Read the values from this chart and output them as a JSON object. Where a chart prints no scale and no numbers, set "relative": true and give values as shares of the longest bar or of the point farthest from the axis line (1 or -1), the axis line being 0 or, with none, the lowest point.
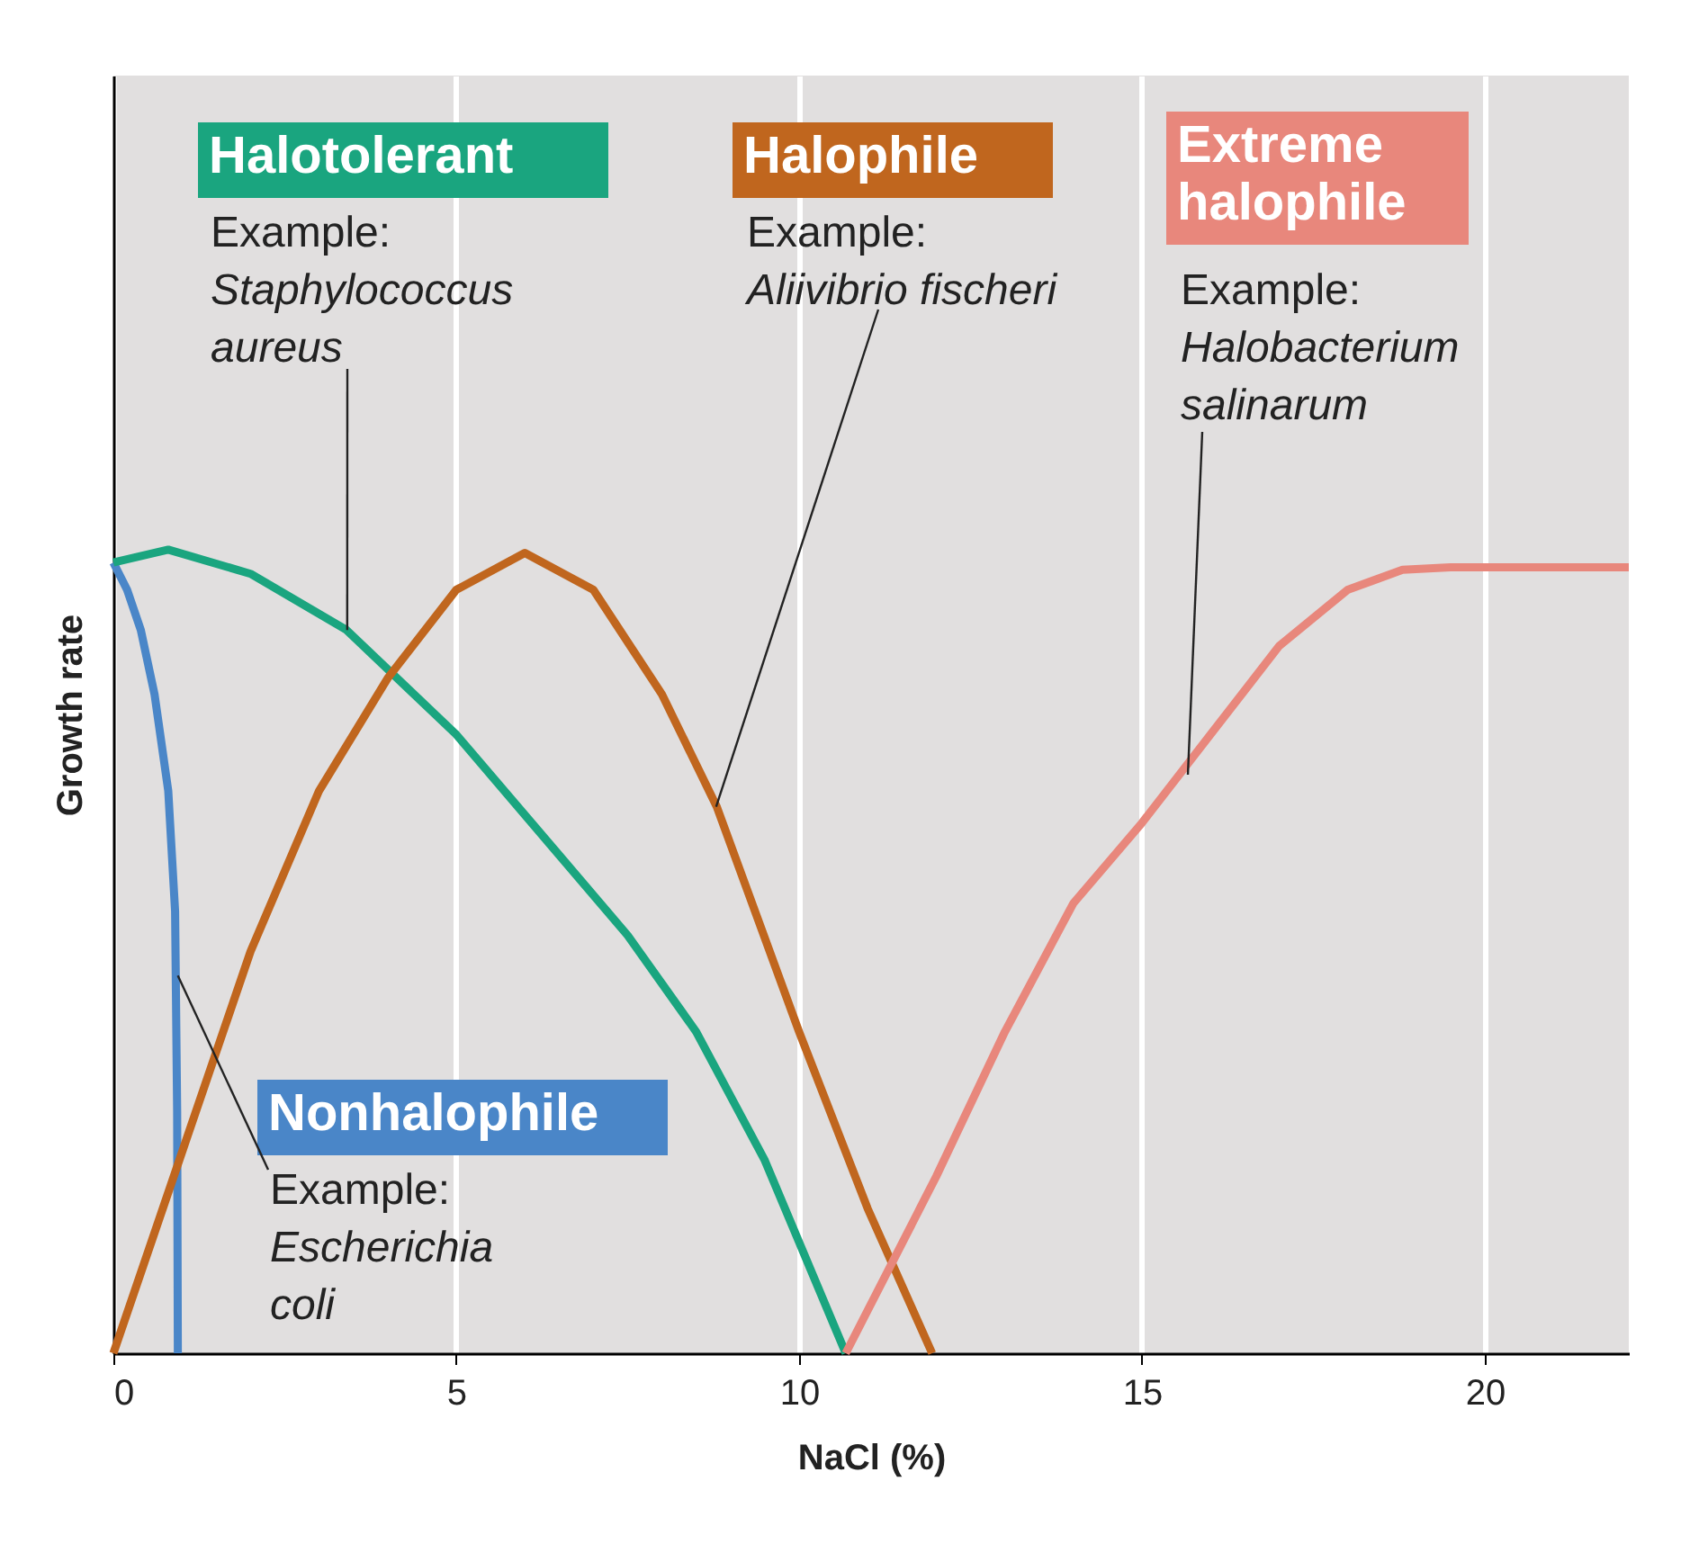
{
  "chart_data": {
    "type": "line",
    "xlabel": "NaCl (%)",
    "ylabel": "Growth rate",
    "relative": true,
    "xlim": [
      0,
      22.1
    ],
    "xticks": [
      0,
      5,
      10,
      15,
      20
    ],
    "grid": "x",
    "marker": "none",
    "line_style": "solid",
    "series": [
      {
        "name": "Nonhalophile",
        "color": "#4a86c8",
        "x": [
          0,
          0.2,
          0.4,
          0.6,
          0.8,
          0.9,
          0.93,
          0.94
        ],
        "values": [
          0.984,
          0.95,
          0.9,
          0.82,
          0.7,
          0.55,
          0.3,
          0
        ]
      },
      {
        "name": "Halotolerant",
        "color": "#1aa57f",
        "x": [
          0,
          0.8,
          2,
          3.4,
          5,
          6.5,
          7.5,
          8.5,
          9.5,
          10.68
        ],
        "values": [
          0.984,
          1,
          0.97,
          0.9,
          0.77,
          0.62,
          0.52,
          0.4,
          0.24,
          0
        ]
      },
      {
        "name": "Halophile",
        "color": "#c0661e",
        "x": [
          0,
          1,
          2,
          3,
          4,
          5,
          6,
          7,
          8,
          8.8,
          10,
          11,
          11.94
        ],
        "values": [
          0,
          0.25,
          0.5,
          0.7,
          0.84,
          0.95,
          0.996,
          0.95,
          0.82,
          0.68,
          0.4,
          0.18,
          0
        ]
      },
      {
        "name": "Extreme halophile",
        "color": "#e8877c",
        "x": [
          10.68,
          12,
          13,
          14,
          15,
          16,
          17,
          18,
          18.8,
          19.5,
          22.1
        ],
        "values": [
          0,
          0.22,
          0.4,
          0.56,
          0.66,
          0.77,
          0.88,
          0.95,
          0.975,
          0.978,
          0.978
        ]
      }
    ],
    "annotations": [
      {
        "text": "Example:\nEscherichia\ncoli",
        "x": 0.94,
        "y": 0.47
      },
      {
        "text": "Example:\nStaphylococcus\naureus",
        "x": 3.41,
        "y": 0.9
      },
      {
        "text": "Example:\nAliivibrio fischeri",
        "x": 8.79,
        "y": 0.68
      },
      {
        "text": "Example:\nHalobacterium\nsalinarum",
        "x": 15.67,
        "y": 0.72
      }
    ]
  }
}
